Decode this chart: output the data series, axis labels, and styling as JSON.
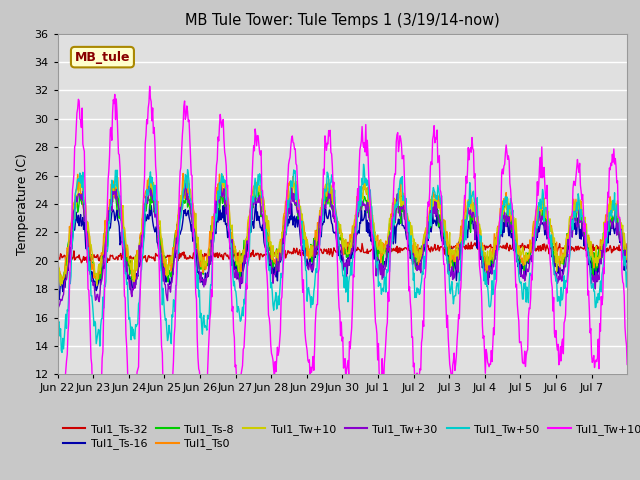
{
  "title": "MB Tule Tower: Tule Temps 1 (3/19/14-now)",
  "ylabel": "Temperature (C)",
  "ylim": [
    12,
    36
  ],
  "yticks": [
    12,
    14,
    16,
    18,
    20,
    22,
    24,
    26,
    28,
    30,
    32,
    34,
    36
  ],
  "series": [
    {
      "label": "Tul1_Ts-32",
      "color": "#cc0000"
    },
    {
      "label": "Tul1_Ts-16",
      "color": "#0000aa"
    },
    {
      "label": "Tul1_Ts-8",
      "color": "#00cc00"
    },
    {
      "label": "Tul1_Ts0",
      "color": "#ff8800"
    },
    {
      "label": "Tul1_Tw+10",
      "color": "#cccc00"
    },
    {
      "label": "Tul1_Tw+30",
      "color": "#8800cc"
    },
    {
      "label": "Tul1_Tw+50",
      "color": "#00cccc"
    },
    {
      "label": "Tul1_Tw+100",
      "color": "#ff00ff"
    }
  ],
  "xtick_labels": [
    "Jun 22",
    "Jun 23",
    "Jun 24",
    "Jun 25",
    "Jun 26",
    "Jun 27",
    "Jun 28",
    "Jun 29",
    "Jun 30",
    "Jul 1",
    "Jul 2",
    "Jul 3",
    "Jul 4",
    "Jul 5",
    "Jul 6",
    "Jul 7"
  ],
  "legend_text": "MB_tule",
  "legend_text_color": "#880000",
  "legend_bg": "#ffffcc",
  "legend_border": "#aa8800",
  "fig_bg": "#c8c8c8",
  "plot_bg": "#e0e0e0"
}
